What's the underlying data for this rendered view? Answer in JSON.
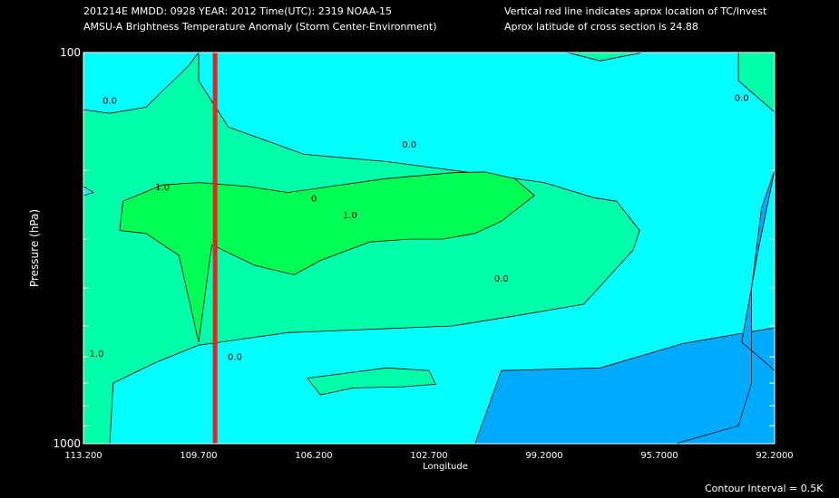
{
  "header": {
    "line1_left": "201214E  MMDD: 0928 YEAR: 2012 Time(UTC): 2319 NOAA-15",
    "line2_left": "AMSU-A Brightness Temperature Anomaly (Storm Center-Environment)",
    "line1_right": "Vertical red line indicates aprox location of TC/Invest",
    "line2_right": "Aprox latitude of cross section is 24.88"
  },
  "footer": {
    "contour_interval": "Contour Interval = 0.5K"
  },
  "colors": {
    "background": "#000000",
    "level_-1.0": "#00aaff",
    "level_-0.5": "#00ffff",
    "level_0.0": "#00ffaa",
    "level_0.5": "#00ff55",
    "level_1.0": "#00ff00",
    "storm_line": "#ff1a1a"
  },
  "chart_data": {
    "type": "heatmap",
    "xlabel": "Longitude",
    "ylabel": "Pressure (hPa)",
    "xlim": [
      113.2,
      92.2
    ],
    "ylim": [
      1000,
      100
    ],
    "yscale": "log",
    "x_ticks": [
      "113.200",
      "109.700",
      "106.200",
      "102.700",
      "99.2000",
      "95.7000",
      "92.2000"
    ],
    "x_tick_values": [
      113.2,
      109.7,
      106.2,
      102.7,
      99.2,
      95.7,
      92.2
    ],
    "y_ticks": [
      "100",
      "1000"
    ],
    "y_tick_values": [
      100,
      1000
    ],
    "y_minor_ticks": [
      200,
      300,
      400,
      500,
      600,
      700,
      800,
      900
    ],
    "storm_longitude": 109.2,
    "contour_interval": 0.5,
    "contour_labels": [
      {
        "text": "0.0",
        "lon": 112.4,
        "p": 135
      },
      {
        "text": "0.0",
        "lon": 103.3,
        "p": 175
      },
      {
        "text": "0.0",
        "lon": 93.2,
        "p": 133
      },
      {
        "text": "1.0",
        "lon": 110.8,
        "p": 225
      },
      {
        "text": "0",
        "lon": 106.2,
        "p": 240
      },
      {
        "text": "1.0",
        "lon": 105.1,
        "p": 265
      },
      {
        "text": "0.0",
        "lon": 100.5,
        "p": 385
      },
      {
        "text": "1.0",
        "lon": 112.8,
        "p": 600
      },
      {
        "text": "0.0",
        "lon": 108.6,
        "p": 610
      }
    ],
    "regions": [
      {
        "level": 0.0,
        "points": [
          [
            113.2,
            1000
          ],
          [
            92.2,
            1000
          ],
          [
            92.2,
            100
          ],
          [
            113.2,
            100
          ]
        ]
      },
      {
        "level": -0.5,
        "points": [
          [
            112.7,
            100
          ],
          [
            98.5,
            100
          ],
          [
            97.5,
            105
          ],
          [
            96.2,
            100
          ],
          [
            93.3,
            100
          ],
          [
            93.3,
            118
          ],
          [
            92.2,
            142
          ],
          [
            92.2,
            1000
          ],
          [
            96.2,
            1000
          ],
          [
            98.0,
            1000
          ],
          [
            104.0,
            1000
          ],
          [
            108.0,
            1000
          ],
          [
            111.0,
            1000
          ],
          [
            112.4,
            1000
          ],
          [
            112.3,
            700
          ],
          [
            111.0,
            620
          ],
          [
            109.7,
            560
          ],
          [
            107.0,
            520
          ],
          [
            104.5,
            510
          ],
          [
            102.0,
            500
          ],
          [
            100.0,
            470
          ],
          [
            98.0,
            440
          ],
          [
            96.5,
            320
          ],
          [
            96.3,
            285
          ],
          [
            97.0,
            240
          ],
          [
            97.7,
            235
          ],
          [
            99.2,
            215
          ],
          [
            101.0,
            205
          ],
          [
            104.0,
            190
          ],
          [
            106.5,
            182
          ],
          [
            108.8,
            155
          ],
          [
            109.7,
            118
          ],
          [
            109.7,
            100
          ],
          [
            110.0,
            108
          ],
          [
            111.3,
            138
          ],
          [
            112.4,
            143
          ],
          [
            113.2,
            140
          ],
          [
            113.2,
            100
          ]
        ]
      },
      {
        "level": -0.5,
        "points": [
          [
            113.2,
            232
          ],
          [
            112.9,
            228
          ],
          [
            113.2,
            220
          ]
        ]
      },
      {
        "level": -1.0,
        "points": [
          [
            101.3,
            1000
          ],
          [
            100.5,
            650
          ],
          [
            97.5,
            640
          ],
          [
            95.0,
            555
          ],
          [
            92.2,
            505
          ],
          [
            92.2,
            1000
          ]
        ]
      },
      {
        "level": -1.0,
        "points": [
          [
            92.2,
            200
          ],
          [
            92.7,
            320
          ],
          [
            93.2,
            550
          ],
          [
            92.2,
            650
          ],
          [
            92.2,
            1000
          ],
          [
            95.2,
            1000
          ],
          [
            93.3,
            900
          ],
          [
            92.9,
            700
          ],
          [
            92.9,
            400
          ],
          [
            92.6,
            250
          ]
        ]
      },
      {
        "level": 0.5,
        "points": [
          [
            112.0,
            240
          ],
          [
            110.8,
            218
          ],
          [
            109.7,
            215
          ],
          [
            108.2,
            220
          ],
          [
            107.0,
            228
          ],
          [
            106.2,
            223
          ],
          [
            104.0,
            210
          ],
          [
            102.0,
            203
          ],
          [
            101.0,
            202
          ],
          [
            100.1,
            210
          ],
          [
            99.5,
            232
          ],
          [
            100.5,
            270
          ],
          [
            101.3,
            290
          ],
          [
            102.3,
            300
          ],
          [
            103.3,
            300
          ],
          [
            104.5,
            305
          ],
          [
            106.0,
            340
          ],
          [
            106.8,
            370
          ],
          [
            108.0,
            350
          ],
          [
            109.3,
            310
          ],
          [
            109.7,
            550
          ],
          [
            110.3,
            330
          ],
          [
            111.3,
            290
          ],
          [
            112.1,
            285
          ]
        ]
      },
      {
        "level": 0.0,
        "points": [
          [
            106.4,
            680
          ],
          [
            105.2,
            660
          ],
          [
            104.0,
            640
          ],
          [
            102.7,
            650
          ],
          [
            102.5,
            705
          ],
          [
            103.5,
            715
          ],
          [
            105.0,
            720
          ],
          [
            106.0,
            750
          ]
        ]
      }
    ]
  }
}
